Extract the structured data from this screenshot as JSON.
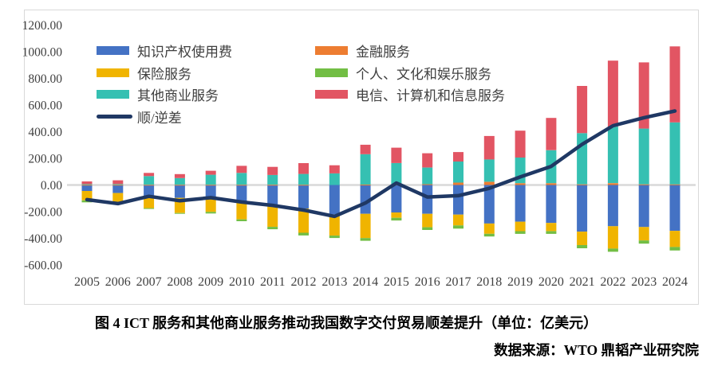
{
  "figure": {
    "caption": "图 4 ICT 服务和其他商业服务推动我国数字交付贸易顺差提升（单位：亿美元）",
    "source": "数据来源：WTO 鼎韬产业研究院"
  },
  "chart_data": {
    "type": "bar",
    "subtype": "stacked-bar-with-line",
    "unit": "亿美元",
    "grid": "zero-line-only",
    "legend_position": "top-inside-two-columns",
    "categories": [
      "2005",
      "2006",
      "2007",
      "2008",
      "2009",
      "2010",
      "2011",
      "2012",
      "2013",
      "2014",
      "2015",
      "2016",
      "2017",
      "2018",
      "2019",
      "2020",
      "2021",
      "2022",
      "2023",
      "2024"
    ],
    "bar_series": [
      {
        "name": "知识产权使用费",
        "color": "#4472C4",
        "values": [
          -45,
          -60,
          -87,
          -97,
          -101,
          -121,
          -150,
          -176,
          -220,
          -216,
          -206,
          -216,
          -222,
          -289,
          -275,
          -285,
          -350,
          -309,
          -315,
          -344
        ]
      },
      {
        "name": "金融服务",
        "color": "#ED7D31",
        "values": [
          2,
          2,
          2,
          2,
          2,
          2,
          2,
          2,
          -5,
          3,
          3,
          6,
          18,
          24,
          14,
          14,
          5,
          14,
          5,
          5
        ]
      },
      {
        "name": "保险服务",
        "color": "#F0B400",
        "values": [
          -70,
          -67,
          -87,
          -113,
          -101,
          -137,
          -164,
          -182,
          -155,
          -182,
          -40,
          -101,
          -81,
          -77,
          -71,
          -61,
          -101,
          -168,
          -101,
          -121
        ]
      },
      {
        "name": "个人、文化和娱乐服务",
        "color": "#72BE44",
        "values": [
          -15,
          -10,
          -5,
          -5,
          -12,
          -14,
          -18,
          -20,
          -18,
          -20,
          -20,
          -20,
          -24,
          -20,
          -20,
          -20,
          -24,
          -24,
          -24,
          -26
        ]
      },
      {
        "name": "其他商业服务",
        "color": "#35C0B2",
        "values": [
          5,
          5,
          65,
          50,
          75,
          89,
          73,
          81,
          87,
          228,
          162,
          125,
          158,
          168,
          192,
          247,
          384,
          424,
          418,
          465
        ]
      },
      {
        "name": "电信、计算机和信息服务",
        "color": "#E25563",
        "values": [
          20,
          28,
          24,
          30,
          30,
          53,
          61,
          81,
          61,
          71,
          115,
          107,
          71,
          176,
          202,
          242,
          354,
          495,
          497,
          570
        ]
      }
    ],
    "line_series": {
      "name": "顺/逆差",
      "color": "#1F3864",
      "values": [
        -110,
        -140,
        -85,
        -118,
        -95,
        -128,
        -153,
        -188,
        -235,
        -135,
        15,
        -90,
        -80,
        -25,
        60,
        140,
        305,
        445,
        505,
        555
      ]
    },
    "y_axis": {
      "min": -600,
      "max": 1200,
      "step": 200,
      "ticks": [
        "1200.00",
        "1000.00",
        "800.00",
        "600.00",
        "400.00",
        "200.00",
        "0.00",
        "-200.00",
        "-400.00",
        "-600.00"
      ]
    },
    "legend": {
      "left_column": [
        "知识产权使用费",
        "保险服务",
        "其他商业服务",
        "顺/逆差"
      ],
      "right_column": [
        "金融服务",
        "个人、文化和娱乐服务",
        "电信、计算机和信息服务"
      ]
    },
    "accent_colors": {
      "border": "#D9D9D9",
      "zero_line": "#D9D9D9",
      "axis_text": "#404040"
    }
  }
}
